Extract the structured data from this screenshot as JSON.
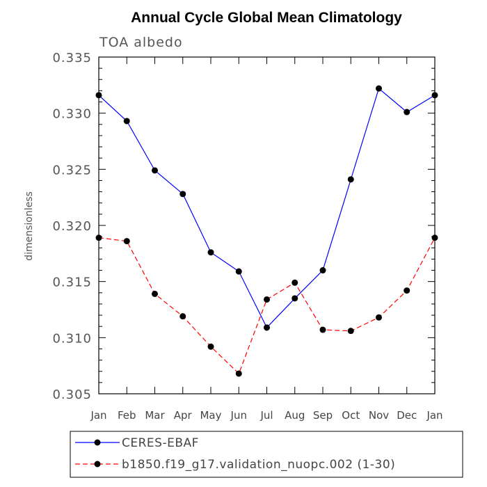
{
  "chart_data": {
    "type": "line",
    "title": "Annual Cycle Global Mean Climatology",
    "subtitle": "TOA albedo",
    "xlabel": "",
    "ylabel": "dimensionless",
    "categories": [
      "Jan",
      "Feb",
      "Mar",
      "Apr",
      "May",
      "Jun",
      "Jul",
      "Aug",
      "Sep",
      "Oct",
      "Nov",
      "Dec",
      "Jan"
    ],
    "ylim": [
      0.305,
      0.335
    ],
    "yticks": [
      "0.305",
      "0.310",
      "0.315",
      "0.320",
      "0.325",
      "0.330",
      "0.335"
    ],
    "grid": false,
    "legend_position": "bottom",
    "series": [
      {
        "name": "CERES-EBAF",
        "color": "#0000ff",
        "line_style": "solid",
        "marker": "filled-circle",
        "values": [
          0.3316,
          0.3293,
          0.3249,
          0.3228,
          0.3176,
          0.3159,
          0.3109,
          0.3135,
          0.316,
          0.3241,
          0.3322,
          0.3301,
          0.3316
        ]
      },
      {
        "name": "b1850.f19_g17.validation_nuopc.002 (1-30)",
        "color": "#ff0000",
        "line_style": "dashed",
        "marker": "filled-circle",
        "values": [
          0.3189,
          0.3186,
          0.3139,
          0.3119,
          0.3092,
          0.3068,
          0.3134,
          0.3149,
          0.3107,
          0.3106,
          0.3118,
          0.3142,
          0.3189
        ]
      }
    ]
  }
}
